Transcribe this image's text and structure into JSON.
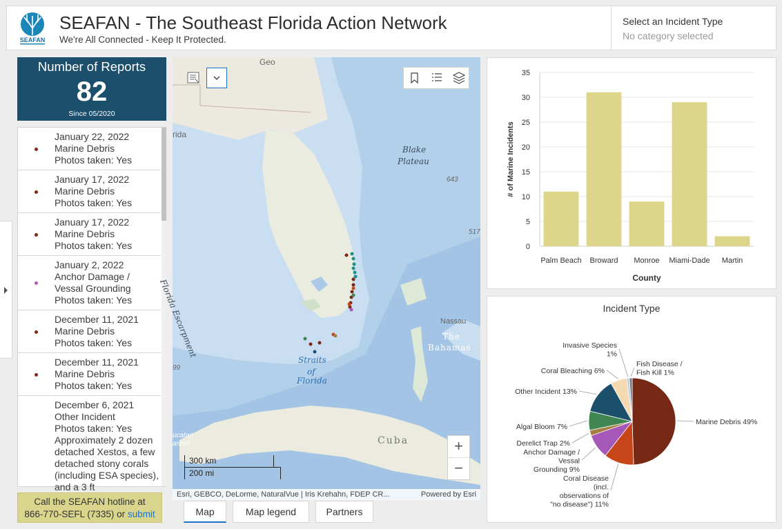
{
  "header": {
    "title": "SEAFAN - The Southeast Florida Action Network",
    "subtitle": "We're All Connected - Keep It Protected.",
    "logo_text": "SEAFAN"
  },
  "selector": {
    "label": "Select an Incident Type",
    "value": "No category selected"
  },
  "indicator": {
    "title": "Number of Reports",
    "value": "82",
    "subtitle": "Since 05/2020"
  },
  "reports": [
    {
      "date": "January 22, 2022",
      "type": "Marine Debris",
      "photos": "Photos taken: Yes",
      "color": "#7a2a1a"
    },
    {
      "date": "January 17, 2022",
      "type": "Marine Debris",
      "photos": "Photos taken: Yes",
      "color": "#7a2a1a"
    },
    {
      "date": "January 17, 2022",
      "type": "Marine Debris",
      "photos": "Photos taken: Yes",
      "color": "#7a2a1a"
    },
    {
      "date": "January 2, 2022",
      "type": "Anchor Damage / Vessal Grounding",
      "photos": "Photos taken: Yes",
      "color": "#b05cb0"
    },
    {
      "date": "December 11, 2021",
      "type": "Marine Debris",
      "photos": "Photos taken: Yes",
      "color": "#7a2a1a"
    },
    {
      "date": "December 11, 2021",
      "type": "Marine Debris",
      "photos": "Photos taken: Yes",
      "color": "#7a2a1a"
    },
    {
      "date": "December 6, 2021",
      "type": "Other Incident",
      "photos": "Photos taken: Yes",
      "note": "Approximately 2 dozen detached Xestos, a few detached stony corals (including ESA species), and a 3 ft",
      "color": "#1c4f6b"
    }
  ],
  "hotline": {
    "line1": "Call the SEAFAN hotline at",
    "line2": "866-770-SEFL (7335) or",
    "link": "submit"
  },
  "map": {
    "labels": {
      "blake": "Blake",
      "plateau": "Plateau",
      "escarpment": "Florida Escarpment",
      "straits": "Straits",
      "of": "of",
      "florida": "Florida",
      "nassau": "Nassau",
      "the": "The",
      "bahamas": "Bahamas",
      "cuba": "Cuba",
      "depth_643": "643",
      "depth_517": "517",
      "rida": "rida",
      "geo": "Geo",
      "g99": "99",
      "canal": "ucatan",
      "annel": "annel"
    },
    "scale_km": "300 km",
    "scale_mi": "200 mi",
    "attribution": "Esri, GEBCO, DeLorme, NaturalVue | Iris Krehahn, FDEP CR...",
    "powered": "Powered by Esri",
    "zoom_in": "+",
    "zoom_out": "−"
  },
  "tabs": [
    "Map",
    "Map legend",
    "Partners"
  ],
  "colors": {
    "indicator_bg": "#1c4f6b",
    "bar_fill": "#ddd68a",
    "hotline_bg": "#d9d58c",
    "accent": "#1a73c8"
  },
  "chart_data": [
    {
      "type": "bar",
      "categories": [
        "Palm Beach",
        "Broward",
        "Monroe",
        "Miami-Dade",
        "Martin"
      ],
      "values": [
        11,
        31,
        9,
        29,
        2
      ],
      "xlabel": "County",
      "ylabel": "# of Marine Incidents",
      "ylim": [
        0,
        35
      ],
      "yticks": [
        0,
        5,
        10,
        15,
        20,
        25,
        30,
        35
      ],
      "grid": true
    },
    {
      "type": "pie",
      "title": "Incident Type",
      "slices": [
        {
          "label": "Marine Debris 49%",
          "value": 49,
          "color": "#772814"
        },
        {
          "label": "Coral Disease (incl. observations of \"no disease\") 11%",
          "value": 11,
          "color": "#c6461a"
        },
        {
          "label": "Anchor Damage / Vessal Grounding 9%",
          "value": 9,
          "color": "#a558b8"
        },
        {
          "label": "Derelict Trap 2%",
          "value": 2,
          "color": "#a58045"
        },
        {
          "label": "Algal Bloom 7%",
          "value": 7,
          "color": "#3f8653"
        },
        {
          "label": "Other Incident 13%",
          "value": 13,
          "color": "#1c4f6b"
        },
        {
          "label": "Coral Bleaching 6%",
          "value": 6,
          "color": "#f5d9b3"
        },
        {
          "label": "Invasive Species 1%",
          "value": 1,
          "color": "#b9cfe0"
        },
        {
          "label": "Fish Disease / Fish Kill 1%",
          "value": 1,
          "color": "#6c7480"
        }
      ]
    }
  ]
}
